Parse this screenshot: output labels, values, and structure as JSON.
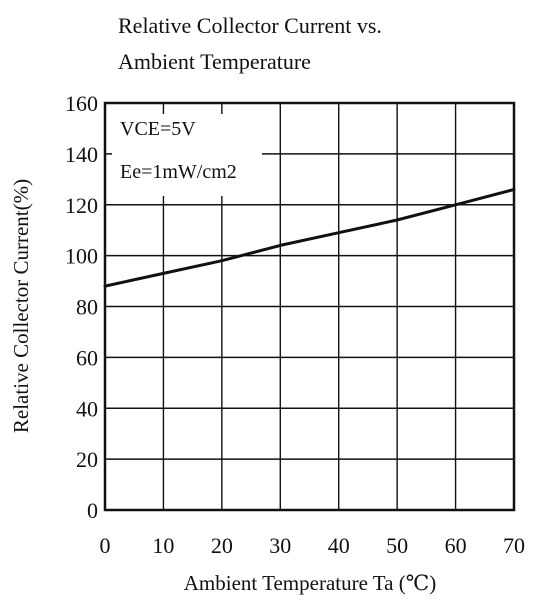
{
  "chart_data": {
    "type": "line",
    "title": "Relative Collector Current vs.",
    "subtitle": "Ambient Temperature",
    "xlabel": "Ambient Temperature Ta (℃)",
    "ylabel": "Relative Collector Current(%)",
    "xlim": [
      0,
      70
    ],
    "ylim": [
      0,
      160
    ],
    "xticks": [
      0,
      10,
      20,
      30,
      40,
      50,
      60,
      70
    ],
    "yticks": [
      0,
      20,
      40,
      60,
      80,
      100,
      120,
      140,
      160
    ],
    "grid": true,
    "annotations": [
      "VCE=5V",
      "Ee=1mW/cm2"
    ],
    "series": [
      {
        "x": [
          0,
          10,
          20,
          30,
          40,
          50,
          60,
          70
        ],
        "y": [
          88,
          93,
          98,
          104,
          109,
          114,
          120,
          126
        ]
      }
    ],
    "colors": {
      "line": "#111111",
      "grid": "#111111",
      "background": "#ffffff"
    }
  }
}
